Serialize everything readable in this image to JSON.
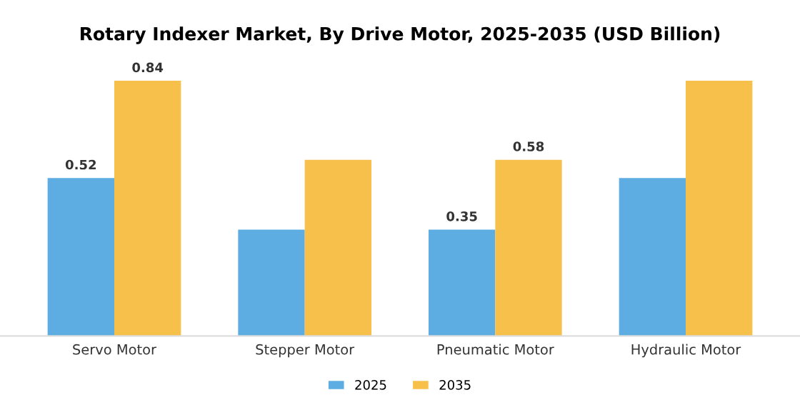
{
  "chart_data": {
    "type": "bar",
    "title": "Rotary Indexer Market, By Drive Motor, 2025-2035 (USD Billion)",
    "categories": [
      "Servo Motor",
      "Stepper Motor",
      "Pneumatic Motor",
      "Hydraulic Motor"
    ],
    "series": [
      {
        "name": "2025",
        "color": "#5dade2",
        "values": [
          0.52,
          0.35,
          0.35,
          0.52
        ],
        "value_labels": [
          "0.52",
          null,
          "0.35",
          null
        ]
      },
      {
        "name": "2035",
        "color": "#f7c04a",
        "values": [
          0.84,
          0.58,
          0.58,
          0.84
        ],
        "value_labels": [
          "0.84",
          null,
          "0.58",
          null
        ]
      }
    ],
    "legend": "bottom",
    "grid": false,
    "tick_labels": "x"
  }
}
